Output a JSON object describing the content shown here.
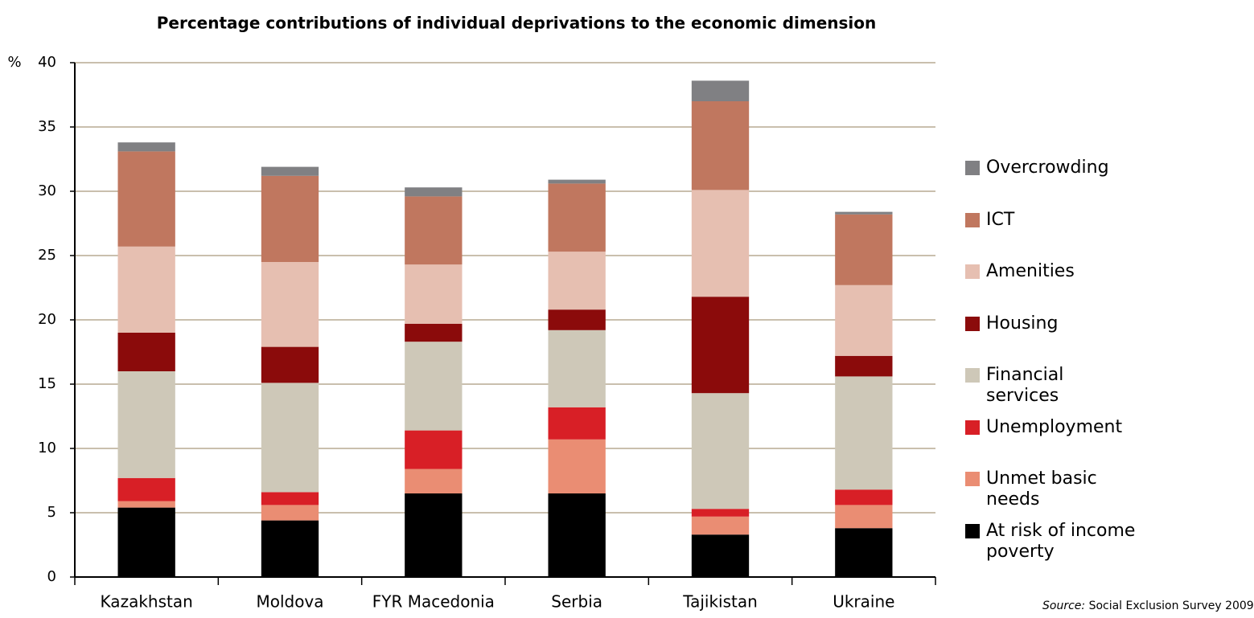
{
  "chart_data": {
    "type": "stacked_bar",
    "title": "Percentage contributions of individual deprivations to the economic dimension",
    "y_label": "%",
    "categories": [
      "Kazakhstan",
      "Moldova",
      "FYR Macedonia",
      "Serbia",
      "Tajikistan",
      "Ukraine"
    ],
    "series": [
      {
        "name": "At risk of income poverty",
        "color": "#000000",
        "values": [
          5.4,
          4.4,
          6.5,
          6.5,
          3.3,
          3.8
        ]
      },
      {
        "name": "Unmet basic needs",
        "color": "#ea8d73",
        "values": [
          0.5,
          1.2,
          1.9,
          4.2,
          1.4,
          1.8
        ]
      },
      {
        "name": "Unemployment",
        "color": "#d81f26",
        "values": [
          1.8,
          1.0,
          3.0,
          2.5,
          0.6,
          1.2
        ]
      },
      {
        "name": "Financial services",
        "color": "#cec8b8",
        "values": [
          8.3,
          8.5,
          6.9,
          6.0,
          9.0,
          8.8
        ]
      },
      {
        "name": "Housing",
        "color": "#8b0b0b",
        "values": [
          3.0,
          2.8,
          1.4,
          1.6,
          7.5,
          1.6
        ]
      },
      {
        "name": "Amenities",
        "color": "#e6bfb1",
        "values": [
          6.7,
          6.6,
          4.6,
          4.5,
          8.3,
          5.5
        ]
      },
      {
        "name": "ICT",
        "color": "#c0775f",
        "values": [
          7.4,
          6.7,
          5.3,
          5.3,
          6.9,
          5.5
        ]
      },
      {
        "name": "Overcrowding",
        "color": "#808083",
        "values": [
          0.7,
          0.7,
          0.7,
          0.3,
          1.6,
          0.2
        ]
      }
    ],
    "ylim": [
      0,
      40
    ],
    "yticks": [
      0,
      5,
      10,
      15,
      20,
      25,
      30,
      35,
      40
    ],
    "grid": true,
    "legend": "right",
    "source": {
      "label": "Source:",
      "text": "Social Exclusion Survey 2009"
    }
  }
}
